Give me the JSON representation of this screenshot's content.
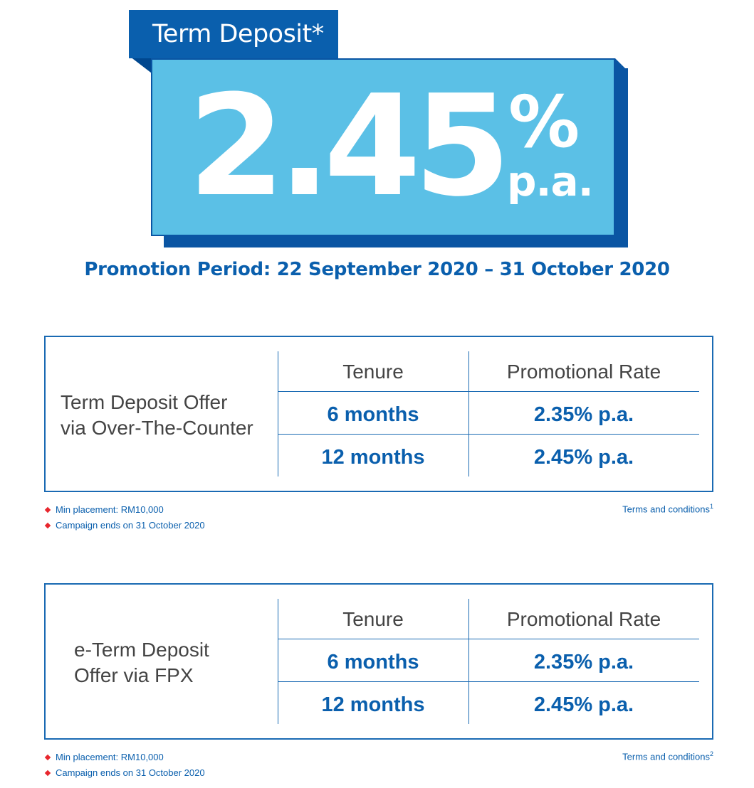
{
  "hero": {
    "tag": "Term Deposit*",
    "rate": "2.45",
    "percent": "%",
    "pa": "p.a.",
    "period": "Promotion Period: 22 September 2020 – 31 October 2020"
  },
  "offers": [
    {
      "title": "Term Deposit Offer\nvia Over-The-Counter",
      "headers": [
        "Tenure",
        "Promotional Rate"
      ],
      "rows": [
        {
          "tenure": "6 months",
          "rate": "2.35% p.a."
        },
        {
          "tenure": "12 months",
          "rate": "2.45% p.a."
        }
      ],
      "notes": [
        "Min placement: RM10,000",
        "Campaign ends on 31 October 2020"
      ],
      "tnc": "Terms and conditions",
      "tnc_ref": "1"
    },
    {
      "title": "e-Term Deposit\nOffer via FPX",
      "headers": [
        "Tenure",
        "Promotional Rate"
      ],
      "rows": [
        {
          "tenure": "6 months",
          "rate": "2.35% p.a."
        },
        {
          "tenure": "12 months",
          "rate": "2.45% p.a."
        }
      ],
      "notes": [
        "Min placement: RM10,000",
        "Campaign ends on 31 October 2020"
      ],
      "tnc": "Terms and conditions",
      "tnc_ref": "2"
    }
  ],
  "colors": {
    "brand_blue": "#0a5fad",
    "light_blue": "#5bc0e6",
    "bullet_red": "#e8262d"
  }
}
